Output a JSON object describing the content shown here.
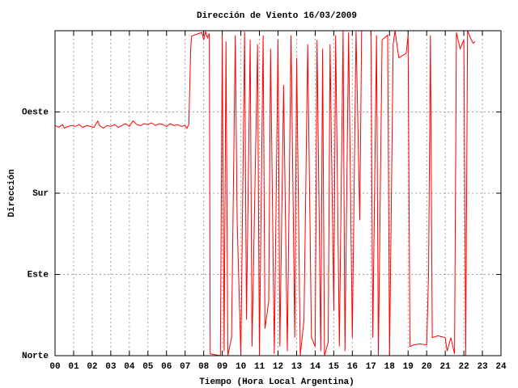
{
  "chart_data": {
    "type": "line",
    "title": "Dirección de Viento 16/03/2009",
    "xlabel": "Tiempo (Hora Local Argentina)",
    "ylabel": "Dirección",
    "color": "#ff0000",
    "grid": true,
    "xlim": [
      0,
      24
    ],
    "ylim": [
      0,
      360
    ],
    "xticks": [
      {
        "value": 0,
        "label": "00"
      },
      {
        "value": 1,
        "label": "01"
      },
      {
        "value": 2,
        "label": "02"
      },
      {
        "value": 3,
        "label": "03"
      },
      {
        "value": 4,
        "label": "04"
      },
      {
        "value": 5,
        "label": "05"
      },
      {
        "value": 6,
        "label": "06"
      },
      {
        "value": 7,
        "label": "07"
      },
      {
        "value": 8,
        "label": "08"
      },
      {
        "value": 9,
        "label": "09"
      },
      10,
      11,
      12,
      13,
      14,
      15,
      16,
      17,
      18,
      19,
      20,
      21,
      22,
      23,
      24
    ],
    "yticks": [
      {
        "value": 0,
        "label": "Norte"
      },
      {
        "value": 90,
        "label": "Este"
      },
      {
        "value": 180,
        "label": "Sur"
      },
      {
        "value": 270,
        "label": "Oeste"
      }
    ],
    "x": [
      0.0,
      0.2,
      0.4,
      0.5,
      0.7,
      0.9,
      1.1,
      1.3,
      1.5,
      1.7,
      1.9,
      2.1,
      2.3,
      2.4,
      2.6,
      2.8,
      3.0,
      3.2,
      3.4,
      3.6,
      3.8,
      4.0,
      4.2,
      4.4,
      4.6,
      4.8,
      5.0,
      5.2,
      5.4,
      5.6,
      5.8,
      6.0,
      6.2,
      6.4,
      6.6,
      6.8,
      7.0,
      7.1,
      7.2,
      7.3,
      7.35,
      7.6,
      7.9,
      8.0,
      8.1,
      8.2,
      8.3,
      8.35,
      8.9,
      9.0,
      9.1,
      9.2,
      9.3,
      9.5,
      9.7,
      9.8,
      10.0,
      10.2,
      10.3,
      10.5,
      10.6,
      10.9,
      11.0,
      11.2,
      11.3,
      11.5,
      11.6,
      11.8,
      12.0,
      12.1,
      12.3,
      12.5,
      12.7,
      12.9,
      13.0,
      13.2,
      13.4,
      13.6,
      13.8,
      14.0,
      14.1,
      14.3,
      14.4,
      14.5,
      14.7,
      14.8,
      15.0,
      15.1,
      15.3,
      15.5,
      15.6,
      15.8,
      16.0,
      16.2,
      16.4,
      16.5,
      17.0,
      17.1,
      17.3,
      17.4,
      17.6,
      17.9,
      18.0,
      18.2,
      18.3,
      18.5,
      18.9,
      19.0,
      19.1,
      19.3,
      19.6,
      20.0,
      20.1,
      20.2,
      20.3,
      20.6,
      21.0,
      21.1,
      21.3,
      21.5,
      21.6,
      21.8,
      22.0,
      22.1,
      22.2,
      22.4,
      22.5,
      22.6
    ],
    "values": [
      255,
      253,
      256,
      252,
      254,
      255,
      254,
      256,
      253,
      255,
      254,
      253,
      260,
      255,
      252,
      255,
      254,
      256,
      253,
      255,
      257,
      254,
      260,
      256,
      255,
      257,
      256,
      258,
      255,
      257,
      256,
      254,
      257,
      255,
      256,
      254,
      255,
      252,
      256,
      340,
      354,
      356,
      358,
      350,
      359,
      352,
      357,
      2,
      0,
      355,
      5,
      348,
      0,
      20,
      355,
      150,
      0,
      359,
      40,
      350,
      10,
      345,
      0,
      355,
      30,
      60,
      340,
      2,
      350,
      10,
      300,
      5,
      355,
      20,
      330,
      0,
      40,
      345,
      20,
      10,
      350,
      5,
      340,
      0,
      15,
      345,
      50,
      355,
      10,
      360,
      5,
      358,
      20,
      359,
      150,
      360,
      360,
      20,
      355,
      0,
      350,
      355,
      0,
      345,
      360,
      330,
      335,
      355,
      10,
      12,
      13,
      12,
      90,
      355,
      20,
      22,
      20,
      5,
      20,
      2,
      358,
      340,
      350,
      0,
      360,
      350,
      346,
      348
    ]
  }
}
